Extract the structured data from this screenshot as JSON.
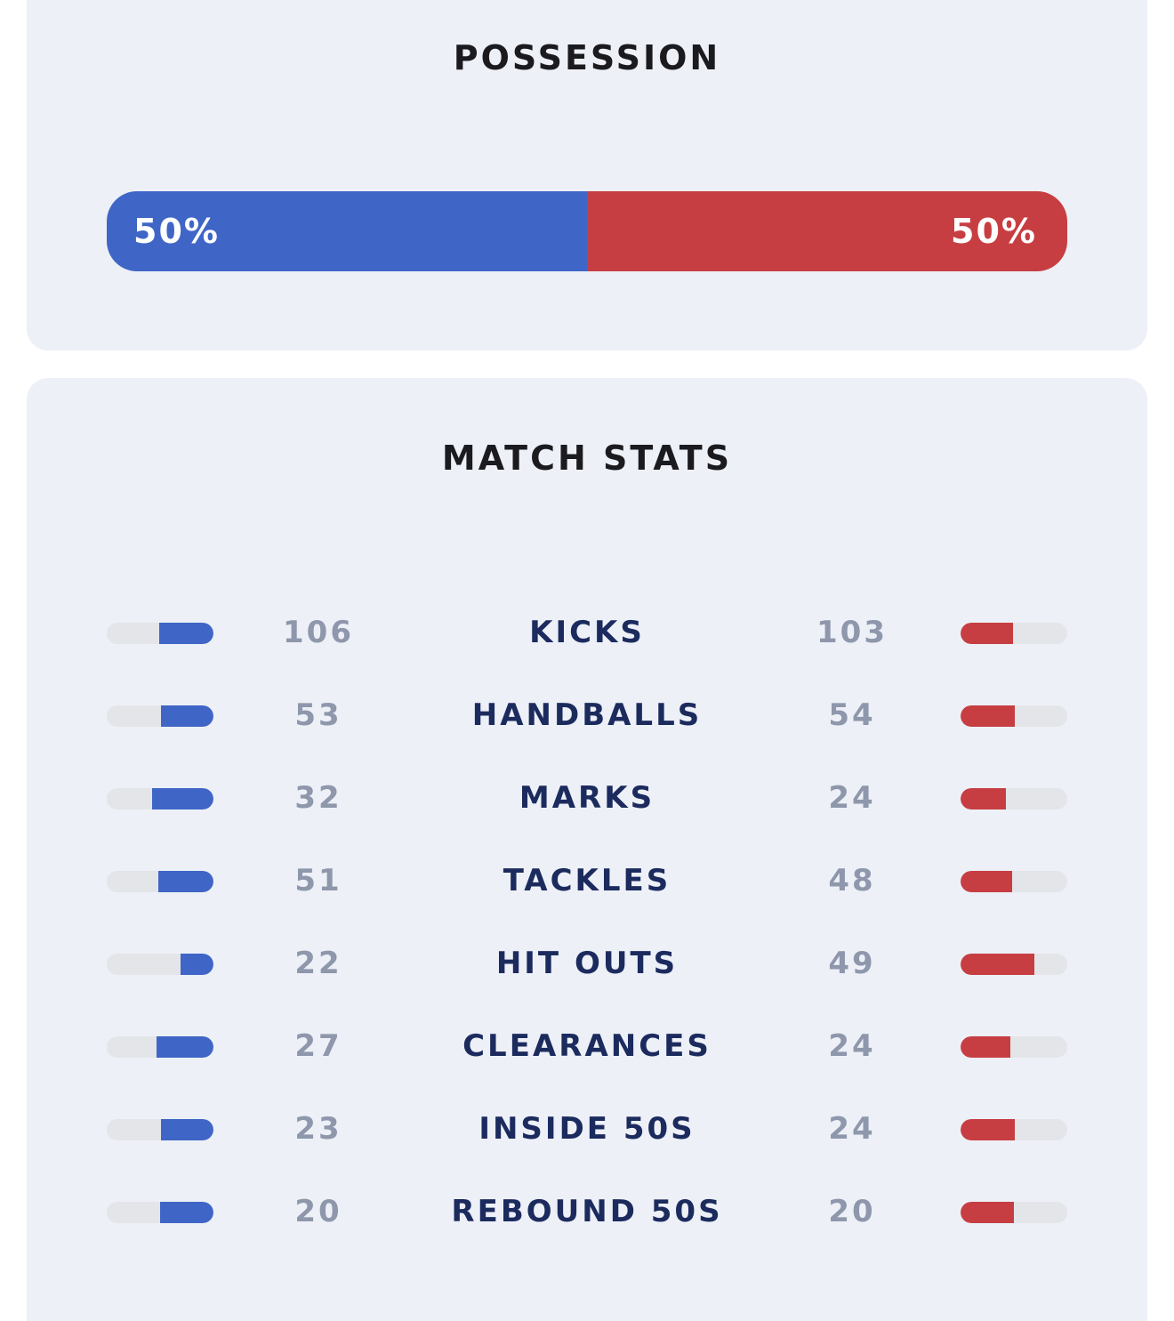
{
  "possession": {
    "title": "POSSESSION",
    "home_percent": 50,
    "away_percent": 50,
    "home_label": "50%",
    "away_label": "50%",
    "home_color": "#3f66c6",
    "away_color": "#c73e42"
  },
  "match_stats": {
    "title": "MATCH STATS",
    "rows": [
      {
        "label": "KICKS",
        "home": "106",
        "away": "103"
      },
      {
        "label": "HANDBALLS",
        "home": "53",
        "away": "54"
      },
      {
        "label": "MARKS",
        "home": "32",
        "away": "24"
      },
      {
        "label": "TACKLES",
        "home": "51",
        "away": "48"
      },
      {
        "label": "HIT OUTS",
        "home": "22",
        "away": "49"
      },
      {
        "label": "CLEARANCES",
        "home": "27",
        "away": "24"
      },
      {
        "label": "INSIDE 50S",
        "home": "23",
        "away": "24"
      },
      {
        "label": "REBOUND 50S",
        "home": "20",
        "away": "20"
      }
    ]
  }
}
